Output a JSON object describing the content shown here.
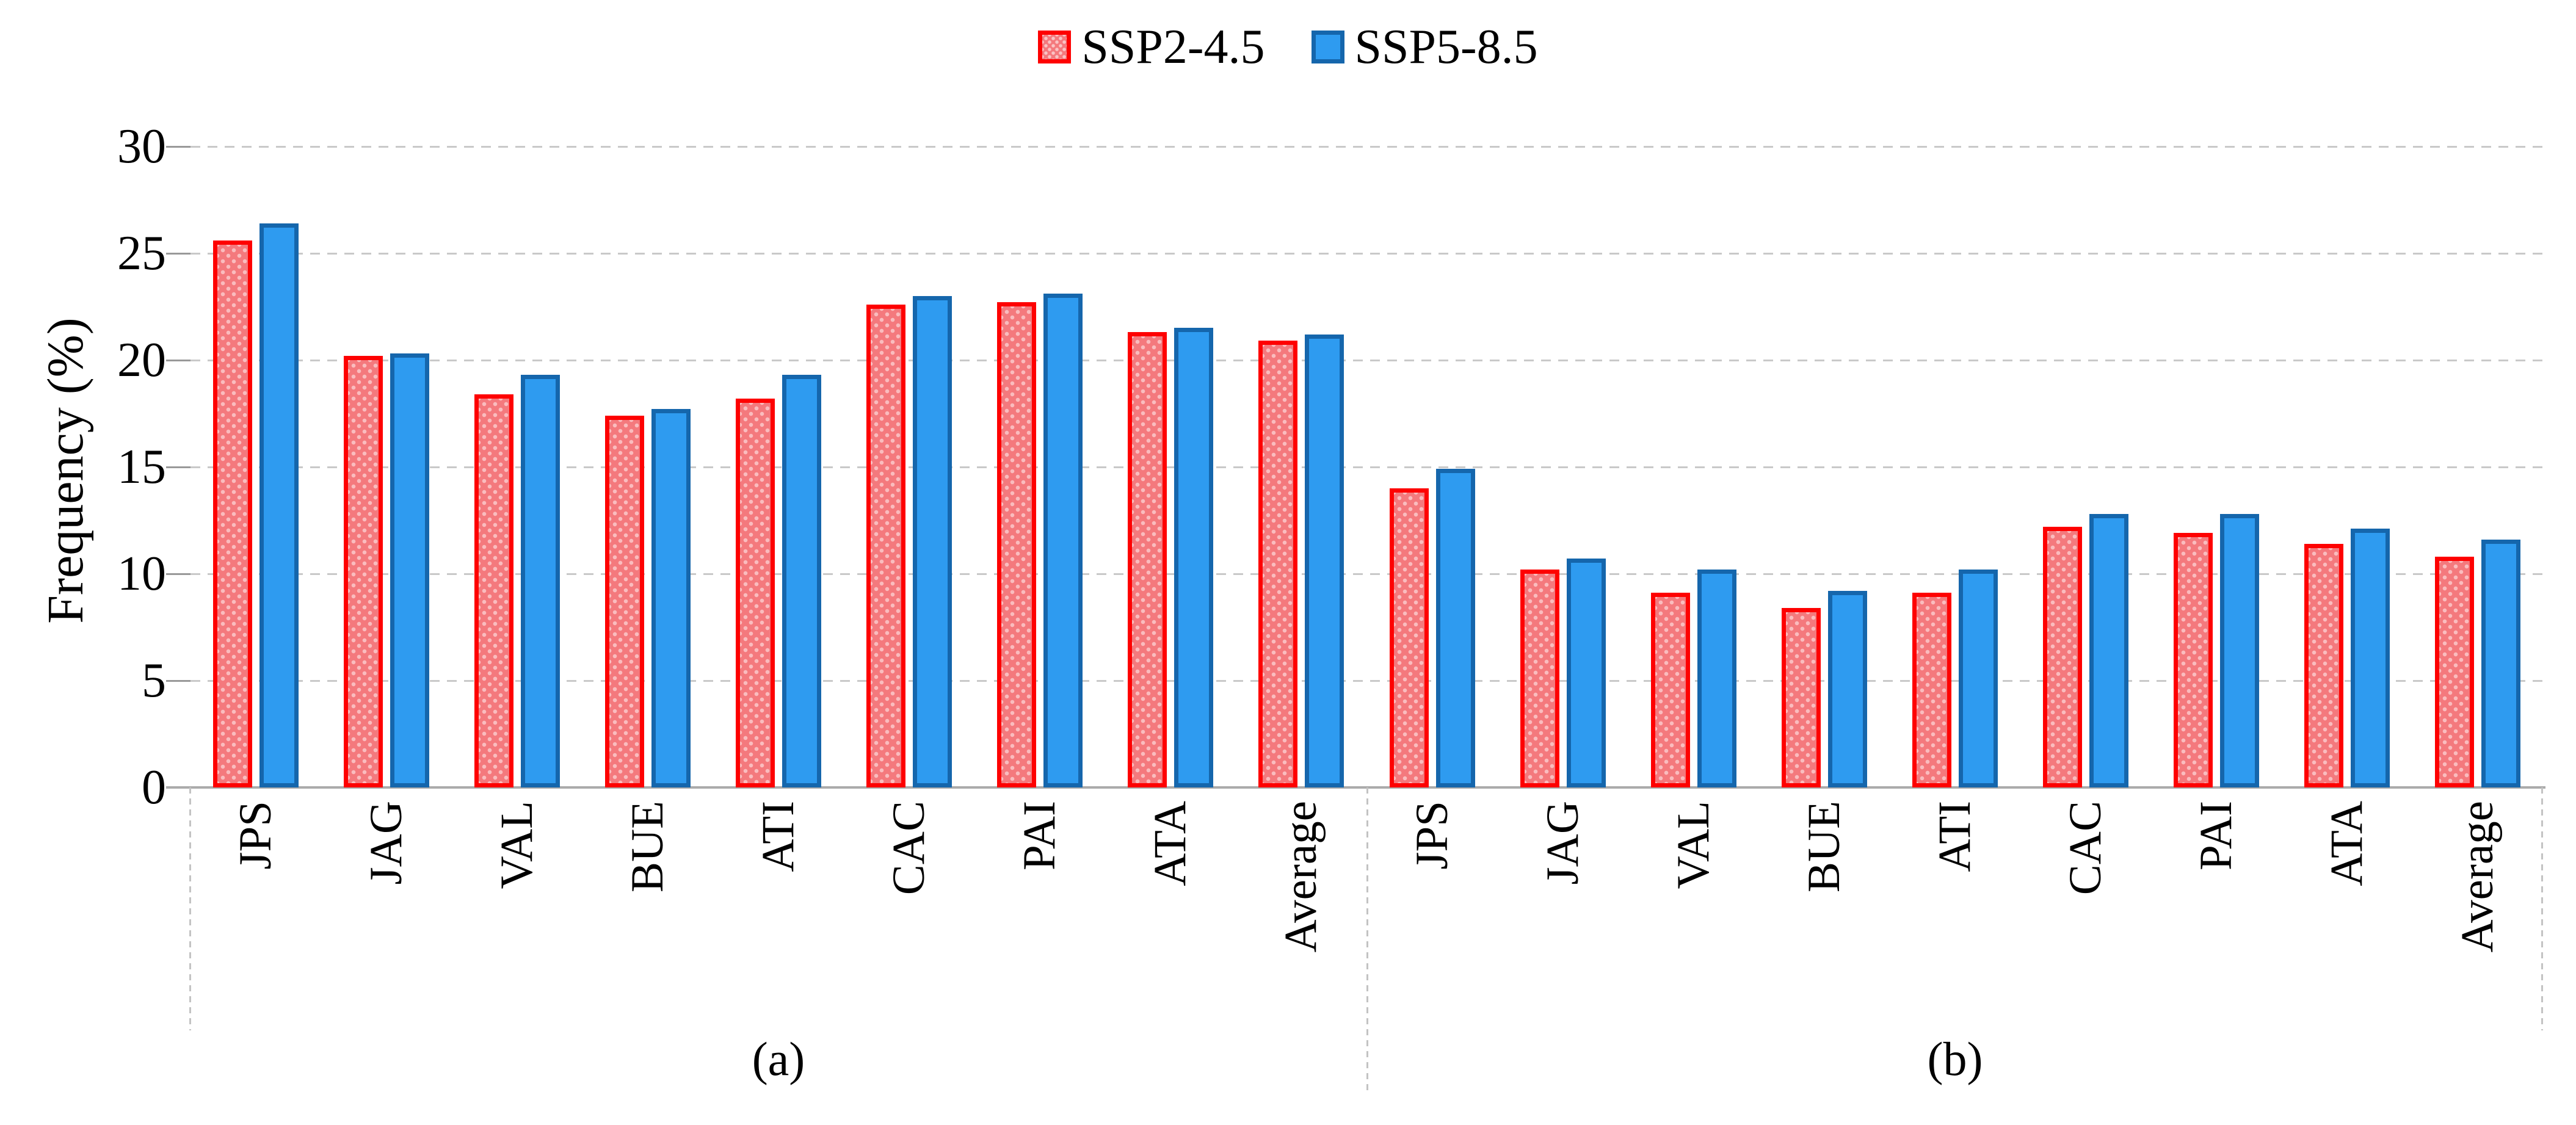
{
  "legend": {
    "items": [
      {
        "label": "SSP2-4.5",
        "series_key": "ssp2",
        "border_color": "#fe0101",
        "fill_color": "#f4797d",
        "fill_style": "dotted-pattern"
      },
      {
        "label": "SSP5-8.5",
        "series_key": "ssp5",
        "border_color": "#1566ac",
        "fill_color": "#2e9bf0",
        "fill_style": "solid"
      }
    ],
    "position": "top-center"
  },
  "y_axis": {
    "title": "Frequency (%)",
    "ticks": [
      0,
      5,
      10,
      15,
      20,
      25,
      30
    ],
    "min": 0,
    "max": 30
  },
  "colors": {
    "red_border": "#fe0101",
    "red_fill": "#f4797d",
    "blue_border": "#1566ac",
    "blue_fill": "#2e9bf0",
    "gridline": "#c9c9c9",
    "axis_line": "#ababab",
    "text": "#000000"
  },
  "chart_data": {
    "type": "bar",
    "title": "",
    "xlabel": "",
    "ylabel": "Frequency (%)",
    "ylim": [
      0,
      30
    ],
    "grid": "horizontal-dashed",
    "legend_position": "top",
    "categories": [
      "JPS",
      "JAG",
      "VAL",
      "BUE",
      "ATI",
      "CAC",
      "PAI",
      "ATA",
      "Average"
    ],
    "groups": [
      {
        "label": "(a)",
        "series": [
          {
            "name": "SSP2-4.5",
            "values": [
              25.6,
              20.2,
              18.4,
              17.4,
              18.2,
              22.6,
              22.7,
              21.3,
              20.9
            ]
          },
          {
            "name": "SSP5-8.5",
            "values": [
              26.4,
              20.3,
              19.3,
              17.7,
              19.3,
              23.0,
              23.1,
              21.5,
              21.2
            ]
          }
        ]
      },
      {
        "label": "(b)",
        "series": [
          {
            "name": "SSP2-4.5",
            "values": [
              14.0,
              10.2,
              9.1,
              8.4,
              9.1,
              12.2,
              11.9,
              11.4,
              10.8
            ]
          },
          {
            "name": "SSP5-8.5",
            "values": [
              14.9,
              10.7,
              10.2,
              9.2,
              10.2,
              12.8,
              12.8,
              12.1,
              11.6
            ]
          }
        ]
      }
    ]
  }
}
